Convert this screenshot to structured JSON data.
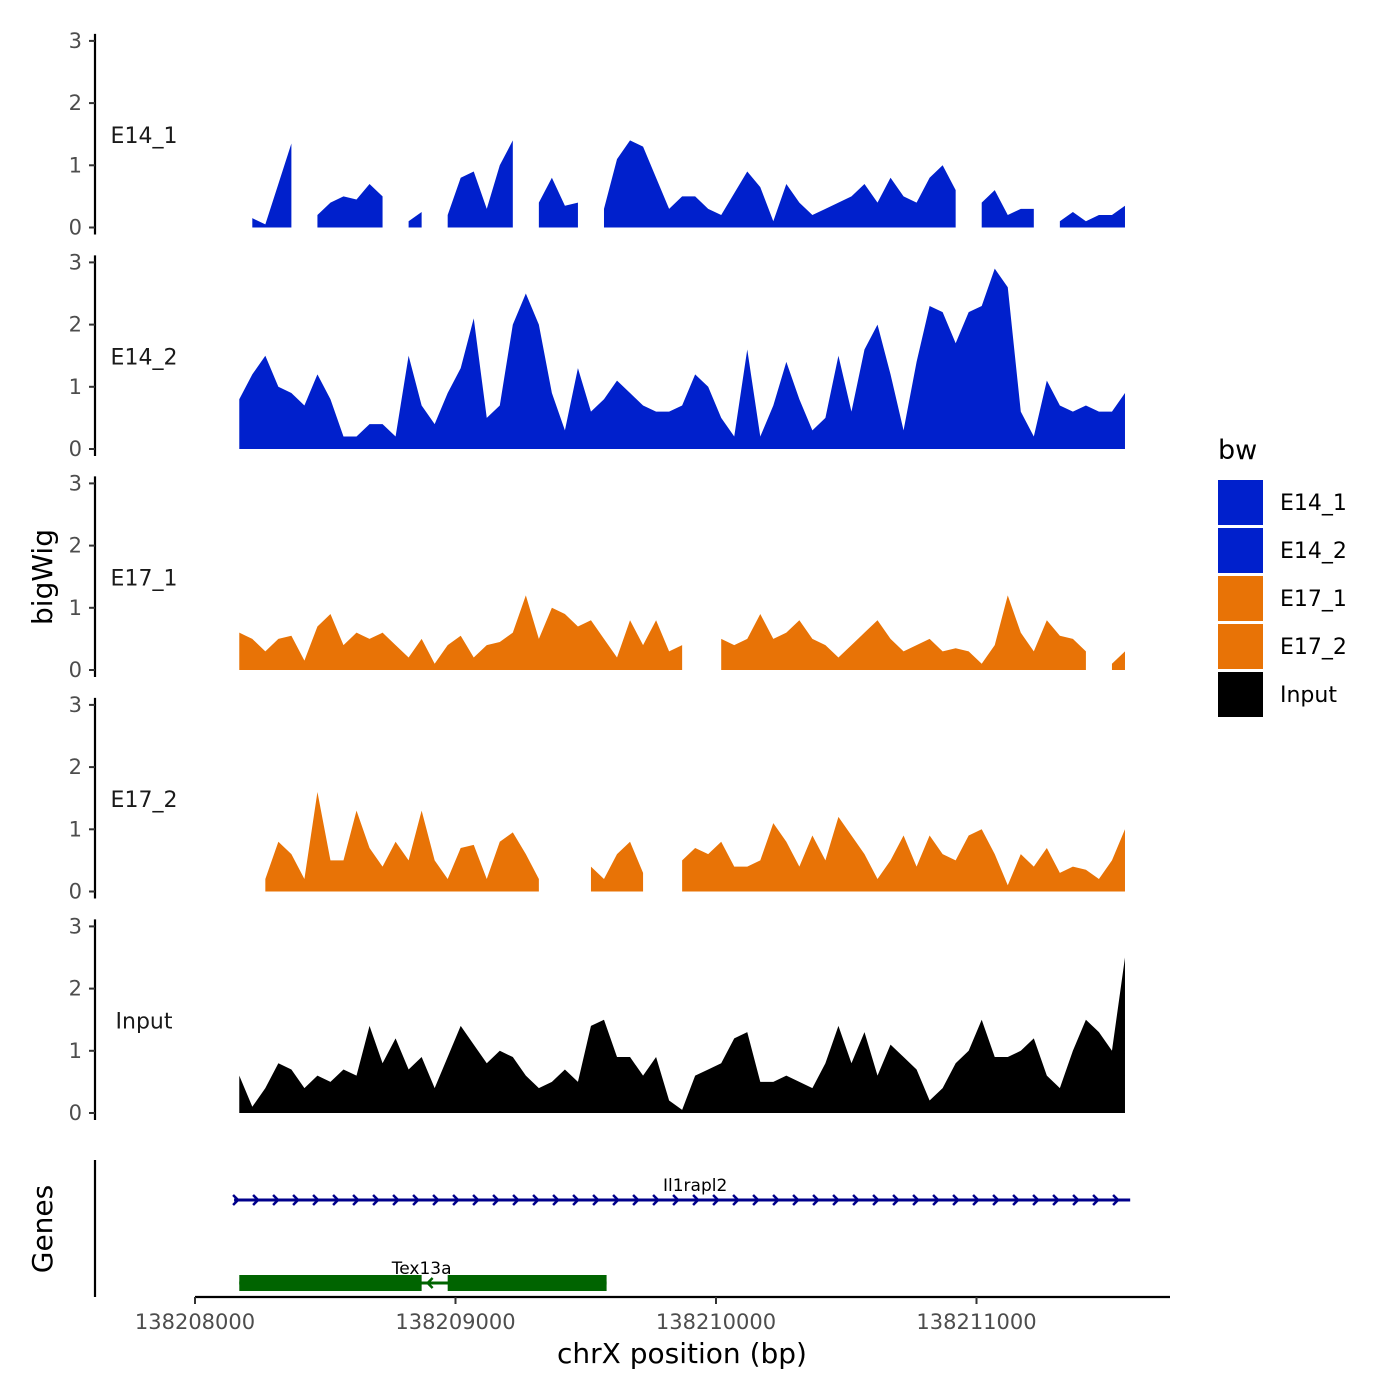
{
  "chart_data": {
    "type": "area",
    "xlabel": "chrX position (bp)",
    "ylabel": "bigWig",
    "genes_label": "Genes",
    "xlim": [
      138207700,
      138211750
    ],
    "x_ticks": [
      138208000,
      138209000,
      138210000,
      138211000
    ],
    "x_tick_labels": [
      "138208000",
      "138209000",
      "138210000",
      "138211000"
    ],
    "ylim": [
      0,
      3
    ],
    "y_ticks": [
      0,
      1,
      2,
      3
    ],
    "y_tick_labels": [
      "0",
      "1",
      "2",
      "3"
    ],
    "legend_title": "bw",
    "legend": [
      {
        "name": "E14_1",
        "color": "#0020CC"
      },
      {
        "name": "E14_2",
        "color": "#0020CC"
      },
      {
        "name": "E17_1",
        "color": "#E87306"
      },
      {
        "name": "E17_2",
        "color": "#E87306"
      },
      {
        "name": "Input",
        "color": "#000000"
      }
    ],
    "x": [
      138208170,
      138208220,
      138208270,
      138208320,
      138208370,
      138208420,
      138208470,
      138208520,
      138208570,
      138208620,
      138208670,
      138208720,
      138208770,
      138208820,
      138208870,
      138208920,
      138208970,
      138209020,
      138209070,
      138209120,
      138209170,
      138209220,
      138209270,
      138209320,
      138209370,
      138209420,
      138209470,
      138209520,
      138209570,
      138209620,
      138209670,
      138209720,
      138209770,
      138209820,
      138209870,
      138209920,
      138209970,
      138210020,
      138210070,
      138210120,
      138210170,
      138210220,
      138210270,
      138210320,
      138210370,
      138210420,
      138210470,
      138210520,
      138210570,
      138210620,
      138210670,
      138210720,
      138210770,
      138210820,
      138210870,
      138210920,
      138210970,
      138211020,
      138211070,
      138211120,
      138211170,
      138211220,
      138211270,
      138211320,
      138211370,
      138211420,
      138211470,
      138211520,
      138211570
    ],
    "series": [
      {
        "name": "E14_1",
        "values": [
          null,
          0.15,
          0.05,
          0.7,
          1.35,
          null,
          0.2,
          0.4,
          0.5,
          0.45,
          0.7,
          0.5,
          null,
          0.1,
          0.25,
          null,
          0.2,
          0.8,
          0.9,
          0.3,
          1.0,
          1.4,
          null,
          0.4,
          0.8,
          0.35,
          0.4,
          null,
          0.3,
          1.1,
          1.4,
          1.3,
          0.8,
          0.3,
          0.5,
          0.5,
          0.3,
          0.2,
          0.55,
          0.9,
          0.65,
          0.1,
          0.7,
          0.4,
          0.2,
          0.3,
          0.4,
          0.5,
          0.7,
          0.4,
          0.8,
          0.5,
          0.4,
          0.8,
          1.0,
          0.6,
          null,
          0.4,
          0.6,
          0.2,
          0.3,
          0.3,
          null,
          0.1,
          0.25,
          0.1,
          0.2,
          0.2,
          0.35
        ]
      },
      {
        "name": "E14_2",
        "values": [
          0.8,
          1.2,
          1.5,
          1.0,
          0.9,
          0.7,
          1.2,
          0.8,
          0.2,
          0.2,
          0.4,
          0.4,
          0.2,
          1.5,
          0.7,
          0.4,
          0.9,
          1.3,
          2.1,
          0.5,
          0.7,
          2.0,
          2.5,
          2.0,
          0.9,
          0.3,
          1.3,
          0.6,
          0.8,
          1.1,
          0.9,
          0.7,
          0.6,
          0.6,
          0.7,
          1.2,
          1.0,
          0.5,
          0.2,
          1.6,
          0.2,
          0.7,
          1.4,
          0.8,
          0.3,
          0.5,
          1.5,
          0.6,
          1.6,
          2.0,
          1.2,
          0.3,
          1.4,
          2.3,
          2.2,
          1.7,
          2.2,
          2.3,
          2.9,
          2.6,
          0.6,
          0.2,
          1.1,
          0.7,
          0.6,
          0.7,
          0.6,
          0.6,
          0.9
        ]
      },
      {
        "name": "E17_1",
        "values": [
          0.6,
          0.5,
          0.3,
          0.5,
          0.55,
          0.15,
          0.7,
          0.9,
          0.4,
          0.6,
          0.5,
          0.6,
          0.4,
          0.2,
          0.5,
          0.1,
          0.4,
          0.55,
          0.2,
          0.4,
          0.45,
          0.6,
          1.2,
          0.5,
          1.0,
          0.9,
          0.7,
          0.8,
          0.5,
          0.2,
          0.8,
          0.4,
          0.8,
          0.3,
          0.4,
          null,
          null,
          0.5,
          0.4,
          0.5,
          0.9,
          0.5,
          0.6,
          0.8,
          0.5,
          0.4,
          0.2,
          0.4,
          0.6,
          0.8,
          0.5,
          0.3,
          0.4,
          0.5,
          0.3,
          0.35,
          0.3,
          0.1,
          0.4,
          1.2,
          0.6,
          0.3,
          0.8,
          0.55,
          0.5,
          0.3,
          null,
          0.1,
          0.3
        ]
      },
      {
        "name": "E17_2",
        "values": [
          null,
          null,
          0.2,
          0.8,
          0.6,
          0.2,
          1.6,
          0.5,
          0.5,
          1.3,
          0.7,
          0.4,
          0.8,
          0.5,
          1.3,
          0.5,
          0.2,
          0.7,
          0.75,
          0.2,
          0.8,
          0.95,
          0.6,
          0.2,
          null,
          null,
          null,
          0.4,
          0.2,
          0.6,
          0.8,
          0.3,
          null,
          null,
          0.5,
          0.7,
          0.6,
          0.8,
          0.4,
          0.4,
          0.5,
          1.1,
          0.8,
          0.4,
          0.9,
          0.5,
          1.2,
          0.9,
          0.6,
          0.2,
          0.5,
          0.9,
          0.4,
          0.9,
          0.6,
          0.5,
          0.9,
          1.0,
          0.6,
          0.1,
          0.6,
          0.4,
          0.7,
          0.3,
          0.4,
          0.35,
          0.2,
          0.5,
          1.0
        ]
      },
      {
        "name": "Input",
        "values": [
          0.6,
          0.1,
          0.4,
          0.8,
          0.7,
          0.4,
          0.6,
          0.5,
          0.7,
          0.6,
          1.4,
          0.8,
          1.2,
          0.7,
          0.9,
          0.4,
          0.9,
          1.4,
          1.1,
          0.8,
          1.0,
          0.9,
          0.6,
          0.4,
          0.5,
          0.7,
          0.5,
          1.4,
          1.5,
          0.9,
          0.9,
          0.6,
          0.9,
          0.2,
          0.05,
          0.6,
          0.7,
          0.8,
          1.2,
          1.3,
          0.5,
          0.5,
          0.6,
          0.5,
          0.4,
          0.8,
          1.4,
          0.8,
          1.3,
          0.6,
          1.1,
          0.9,
          0.7,
          0.2,
          0.4,
          0.8,
          1.0,
          1.5,
          0.9,
          0.9,
          1.0,
          1.2,
          0.6,
          0.4,
          1.0,
          1.5,
          1.3,
          1.0,
          2.5
        ]
      }
    ],
    "genes": [
      {
        "name": "Il1rapl2",
        "start": 138208150,
        "end": 138211590,
        "strand": "+",
        "color": "#00008B"
      },
      {
        "name": "Tex13a",
        "start": 138208170,
        "end": 138209580,
        "strand": "-",
        "color": "#006400",
        "exons": [
          [
            138208170,
            138208870
          ],
          [
            138208970,
            138209580
          ]
        ]
      }
    ]
  }
}
